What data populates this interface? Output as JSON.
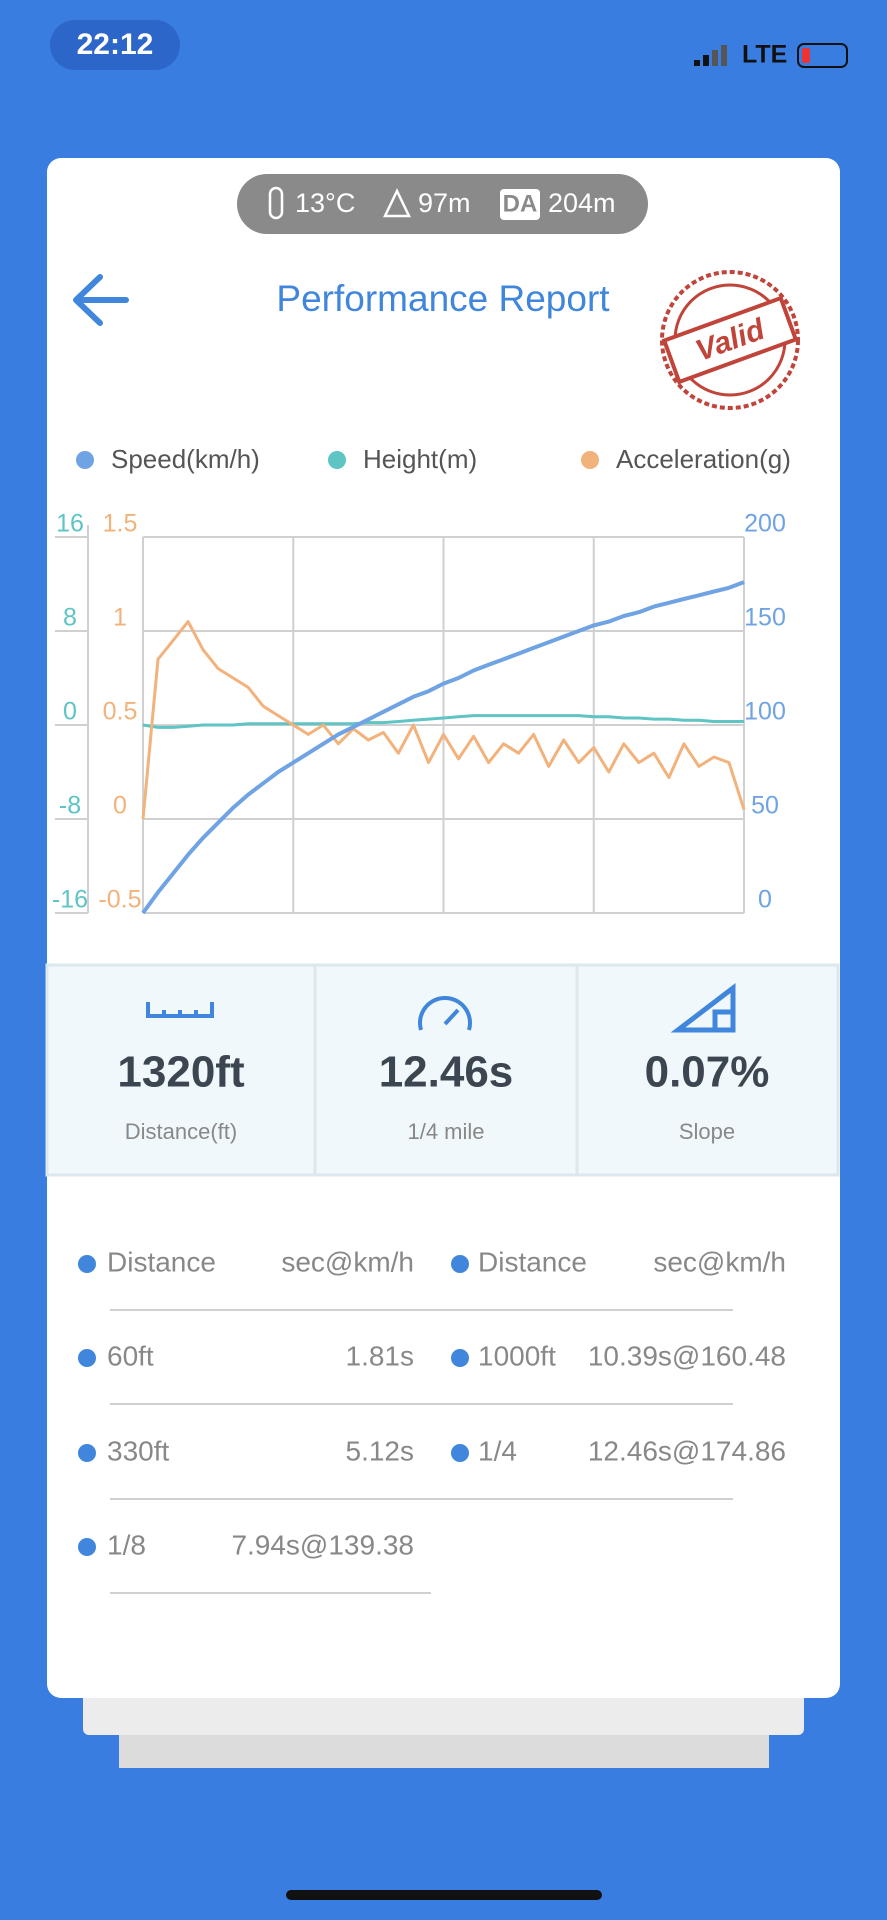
{
  "status_bar": {
    "time": "22:12",
    "network": "LTE"
  },
  "conditions": {
    "temperature": "13°C",
    "altitude": "97m",
    "da_label": "DA",
    "density_altitude": "204m"
  },
  "header": {
    "title": "Performance Report",
    "stamp": "Valid"
  },
  "chart_data": {
    "type": "line",
    "grid": true,
    "series": [
      {
        "name": "Speed(km/h)",
        "color": "#6fa3e3",
        "axis": "y2",
        "values": [
          0,
          11,
          21,
          31,
          40,
          48,
          56,
          63,
          69,
          75,
          80,
          85,
          90,
          95,
          99,
          103,
          107,
          111,
          115,
          118,
          122,
          125,
          129,
          132,
          135,
          138,
          141,
          144,
          147,
          150,
          153,
          155,
          158,
          160,
          163,
          165,
          167,
          169,
          171,
          173,
          176
        ]
      },
      {
        "name": "Height(m)",
        "color": "#5ec4c4",
        "axis": "y3",
        "values": [
          0,
          -0.2,
          -0.2,
          -0.1,
          0,
          0,
          0,
          0.1,
          0.1,
          0.1,
          0.1,
          0.1,
          0.1,
          0.1,
          0.1,
          0.2,
          0.2,
          0.3,
          0.4,
          0.5,
          0.6,
          0.7,
          0.8,
          0.8,
          0.8,
          0.8,
          0.8,
          0.8,
          0.8,
          0.8,
          0.7,
          0.7,
          0.6,
          0.6,
          0.5,
          0.5,
          0.4,
          0.4,
          0.3,
          0.3,
          0.3
        ]
      },
      {
        "name": "Acceleration(g)",
        "color": "#f2b27c",
        "axis": "y",
        "values": [
          0,
          0.85,
          0.95,
          1.05,
          0.9,
          0.8,
          0.75,
          0.7,
          0.6,
          0.55,
          0.5,
          0.45,
          0.5,
          0.4,
          0.48,
          0.42,
          0.46,
          0.35,
          0.5,
          0.3,
          0.45,
          0.32,
          0.44,
          0.3,
          0.4,
          0.35,
          0.45,
          0.28,
          0.42,
          0.3,
          0.38,
          0.25,
          0.4,
          0.3,
          0.35,
          0.22,
          0.4,
          0.28,
          0.33,
          0.3,
          0.05
        ]
      }
    ],
    "ylim": [
      -0.5,
      1.5
    ],
    "yticks": [
      1.5,
      1,
      0.5,
      0,
      -0.5
    ],
    "ytick_color": "#f2b27c",
    "y2lim": [
      0,
      200
    ],
    "y2ticks": [
      200,
      150,
      100,
      50,
      0
    ],
    "y2tick_color": "#6fa3e3",
    "y3lim": [
      -16,
      16
    ],
    "y3ticks": [
      16,
      8,
      0,
      -8,
      -16
    ],
    "y3tick_color": "#5ec4c4"
  },
  "stats": [
    {
      "value": "1320ft",
      "label": "Distance(ft)"
    },
    {
      "value": "12.46s",
      "label": "1/4 mile"
    },
    {
      "value": "0.07%",
      "label": "Slope"
    }
  ],
  "table": {
    "columns": [
      {
        "header": [
          "Distance",
          "sec@km/h"
        ],
        "rows": [
          [
            "60ft",
            "1.81s"
          ],
          [
            "330ft",
            "5.12s"
          ],
          [
            "1/8",
            "7.94s@139.38"
          ]
        ]
      },
      {
        "header": [
          "Distance",
          "sec@km/h"
        ],
        "rows": [
          [
            "1000ft",
            "10.39s@160.48"
          ],
          [
            "1/4",
            "12.46s@174.86"
          ]
        ]
      }
    ]
  }
}
